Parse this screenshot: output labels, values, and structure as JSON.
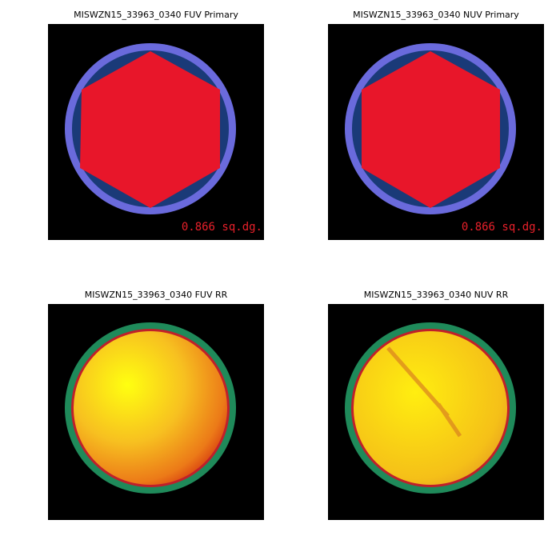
{
  "panels": [
    {
      "title": "MISWZN15_33963_0340 FUV Primary",
      "annotation": "0.866 sq.dg."
    },
    {
      "title": "MISWZN15_33963_0340 NUV Primary",
      "annotation": "0.866 sq.dg."
    },
    {
      "title": "MISWZN15_33963_0340 FUV RR"
    },
    {
      "title": "MISWZN15_33963_0340 NUV RR"
    }
  ]
}
